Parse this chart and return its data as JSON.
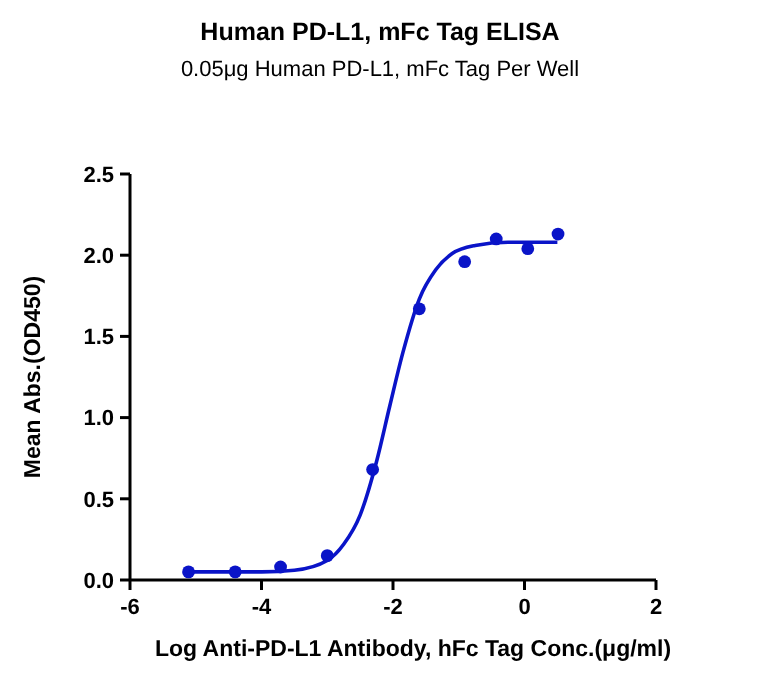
{
  "chart_data": {
    "type": "scatter",
    "title": "Human PD-L1, mFc Tag ELISA",
    "subtitle": "0.05μg  Human PD-L1, mFc Tag Per Well",
    "xlabel": "Log Anti-PD-L1 Antibody, hFc Tag Conc.(μg/ml)",
    "ylabel": "Mean Abs.(OD450)",
    "xlim": [
      -6,
      2
    ],
    "ylim": [
      0,
      2.5
    ],
    "xticks": [
      -6,
      -4,
      -2,
      0,
      2
    ],
    "yticks": [
      {
        "value": 0,
        "label": "0.0"
      },
      0.5,
      {
        "value": 1,
        "label": "1.0"
      },
      1.5,
      {
        "value": 2,
        "label": "2.0"
      },
      2.5
    ],
    "grid": false,
    "series": [
      {
        "type": "scatter",
        "color": "#0a14c8",
        "marker": "circle",
        "x": [
          -5.11,
          -4.4,
          -3.71,
          -3.0,
          -2.31,
          -1.6,
          -0.91,
          -0.43,
          0.05,
          0.51
        ],
        "values": [
          0.05,
          0.05,
          0.08,
          0.15,
          0.68,
          1.67,
          1.96,
          2.1,
          2.04,
          2.13
        ]
      },
      {
        "type": "line",
        "color": "#0a14c8",
        "marker": "none",
        "line_style": "solid",
        "x": [
          -5.1,
          -4,
          -3.5,
          -3,
          -2.75,
          -2.5,
          -2.25,
          -2.05,
          -1.85,
          -1.6,
          -1.35,
          -1.1,
          -0.75,
          -0.25,
          0.5
        ],
        "values": [
          0.05,
          0.05,
          0.06,
          0.12,
          0.22,
          0.4,
          0.73,
          1.07,
          1.4,
          1.73,
          1.91,
          2.01,
          2.06,
          2.08,
          2.08
        ]
      }
    ]
  }
}
